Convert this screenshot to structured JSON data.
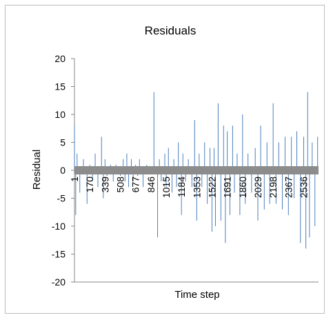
{
  "chart_data": {
    "type": "line",
    "title": "Residuals",
    "xlabel": "Time step",
    "ylabel": "Residual",
    "ylim": [
      -20,
      20
    ],
    "y_ticks": [
      "20",
      "15",
      "10",
      "5",
      "0",
      "-5",
      "-10",
      "-15",
      "-20"
    ],
    "x_tick_labels": [
      "1",
      "170",
      "339",
      "508",
      "677",
      "846",
      "1015",
      "1184",
      "1353",
      "1522",
      "1691",
      "1860",
      "2029",
      "2198",
      "2367",
      "2536"
    ],
    "x_range": [
      1,
      2700
    ],
    "grid": false,
    "legend": "none",
    "series": [
      {
        "color": "#4a7ebb",
        "x": [
          1,
          15,
          30,
          60,
          100,
          140,
          170,
          200,
          230,
          260,
          300,
          320,
          339,
          360,
          400,
          430,
          460,
          508,
          540,
          560,
          580,
          600,
          630,
          650,
          677,
          700,
          720,
          760,
          800,
          846,
          880,
          920,
          940,
          960,
          1000,
          1015,
          1040,
          1080,
          1100,
          1130,
          1150,
          1184,
          1200,
          1230,
          1260,
          1300,
          1330,
          1353,
          1380,
          1410,
          1440,
          1470,
          1500,
          1522,
          1545,
          1560,
          1590,
          1620,
          1650,
          1670,
          1691,
          1720,
          1750,
          1770,
          1800,
          1830,
          1860,
          1890,
          1920,
          1960,
          2000,
          2029,
          2060,
          2100,
          2130,
          2160,
          2198,
          2230,
          2260,
          2300,
          2330,
          2367,
          2400,
          2430,
          2460,
          2500,
          2536,
          2560,
          2580,
          2600,
          2630,
          2660,
          2690
        ],
        "values": [
          8,
          -8,
          3,
          -4,
          2,
          -6,
          1,
          -2,
          3,
          -3,
          6,
          -5,
          2,
          -1,
          1,
          -2,
          1,
          -1,
          2,
          -2,
          3,
          -3,
          2,
          -2,
          1,
          -1,
          2,
          -3,
          1,
          0,
          14,
          -12,
          2,
          -2,
          3,
          -3,
          4,
          -4,
          2,
          -3,
          5,
          -8,
          3,
          -2,
          2,
          -3,
          9,
          -9,
          3,
          -3,
          5,
          -6,
          4,
          -11,
          4,
          -10,
          12,
          -9,
          8,
          -13,
          7,
          -8,
          8,
          -4,
          3,
          -8,
          10,
          -6,
          3,
          -4,
          4,
          -9,
          8,
          -7,
          5,
          -6,
          12,
          -6,
          5,
          -7,
          6,
          -8,
          6,
          -5,
          7,
          -13,
          6,
          -14,
          14,
          -12,
          5,
          -10,
          6
        ]
      }
    ]
  }
}
